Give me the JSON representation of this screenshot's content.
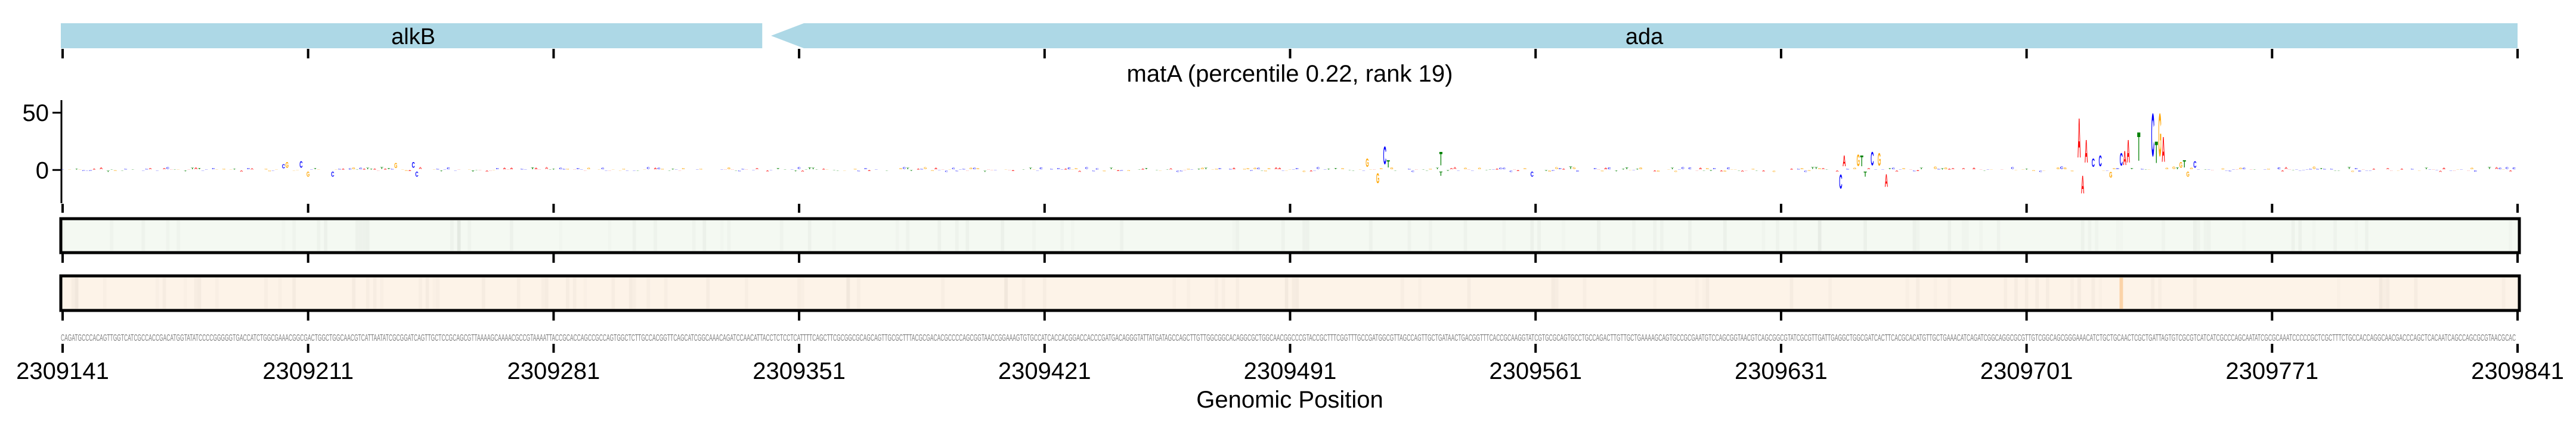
{
  "chart_data": {
    "type": "sequence-logo",
    "title": "matA (percentile 0.22, rank 19)",
    "xlabel": "Genomic Position",
    "xlim": [
      2309141,
      2309841
    ],
    "xticks": [
      2309141,
      2309211,
      2309281,
      2309351,
      2309421,
      2309491,
      2309561,
      2309631,
      2309701,
      2309771,
      2309841
    ],
    "ylim": [
      -29,
      61
    ],
    "yticks": [
      0,
      50
    ],
    "genes": [
      {
        "name": "alkB",
        "start": 2309141,
        "end": 2309341,
        "strand": "+"
      },
      {
        "name": "ada",
        "start": 2309343,
        "end": 2309841,
        "strand": "-"
      }
    ],
    "base_colors": {
      "A": "#ff0000",
      "C": "#0000ff",
      "G": "#ffa500",
      "T": "#008000"
    },
    "background_amplitude": 3,
    "peaks": [
      {
        "pos": 2309204,
        "base": "C",
        "value": 6
      },
      {
        "pos": 2309205,
        "base": "G",
        "value": 8
      },
      {
        "pos": 2309209,
        "base": "C",
        "value": 9
      },
      {
        "pos": 2309211,
        "base": "G",
        "value": -7
      },
      {
        "pos": 2309218,
        "base": "C",
        "value": -7
      },
      {
        "pos": 2309236,
        "base": "G",
        "value": 7
      },
      {
        "pos": 2309241,
        "base": "C",
        "value": 8
      },
      {
        "pos": 2309242,
        "base": "C",
        "value": -7
      },
      {
        "pos": 2309513,
        "base": "G",
        "value": 12
      },
      {
        "pos": 2309516,
        "base": "G",
        "value": -14
      },
      {
        "pos": 2309518,
        "base": "C",
        "value": 25
      },
      {
        "pos": 2309519,
        "base": "T",
        "value": 10
      },
      {
        "pos": 2309534,
        "base": "T",
        "value": 19
      },
      {
        "pos": 2309534,
        "base": "T",
        "value": -6
      },
      {
        "pos": 2309560,
        "base": "C",
        "value": -7
      },
      {
        "pos": 2309648,
        "base": "C",
        "value": -20
      },
      {
        "pos": 2309649,
        "base": "A",
        "value": 15
      },
      {
        "pos": 2309653,
        "base": "G",
        "value": 16
      },
      {
        "pos": 2309654,
        "base": "T",
        "value": 15
      },
      {
        "pos": 2309655,
        "base": "T",
        "value": -7
      },
      {
        "pos": 2309657,
        "base": "C",
        "value": 19
      },
      {
        "pos": 2309659,
        "base": "G",
        "value": 18
      },
      {
        "pos": 2309661,
        "base": "A",
        "value": -18
      },
      {
        "pos": 2309716,
        "base": "A",
        "value": 55
      },
      {
        "pos": 2309717,
        "base": "A",
        "value": -25
      },
      {
        "pos": 2309718,
        "base": "A",
        "value": 32
      },
      {
        "pos": 2309720,
        "base": "C",
        "value": 12
      },
      {
        "pos": 2309722,
        "base": "C",
        "value": 15
      },
      {
        "pos": 2309725,
        "base": "G",
        "value": -8
      },
      {
        "pos": 2309728,
        "base": "C",
        "value": 18
      },
      {
        "pos": 2309729,
        "base": "A",
        "value": 20
      },
      {
        "pos": 2309730,
        "base": "A",
        "value": 32
      },
      {
        "pos": 2309733,
        "base": "T",
        "value": 40
      },
      {
        "pos": 2309737,
        "base": "C",
        "value": 60
      },
      {
        "pos": 2309738,
        "base": "T",
        "value": 30
      },
      {
        "pos": 2309739,
        "base": "G",
        "value": 60
      },
      {
        "pos": 2309740,
        "base": "A",
        "value": 35
      },
      {
        "pos": 2309745,
        "base": "G",
        "value": 8
      },
      {
        "pos": 2309746,
        "base": "T",
        "value": 10
      },
      {
        "pos": 2309747,
        "base": "G",
        "value": -7
      },
      {
        "pos": 2309749,
        "base": "C",
        "value": 9
      }
    ],
    "track1": {
      "color": "#f4f9f2",
      "highlight_positions": []
    },
    "track2": {
      "color": "#fdf3e8",
      "highlight_color": "#fbd3a8",
      "highlight_positions": [
        2309728
      ]
    },
    "sequence": "CAGATGCCCACAGTTGGTCATCGCCACCGACATGGTATATCCCCGGGGGTGACCATCTGGCGAAACGGCGACTGGCTGGCAACGTCATTAATATCGCGGATCAGTTGCTCCGCAGCGTTAAAAGCAAAACGCCGTAAAATTACCGCACCAGCCGCCAGTGGCTCTTGCCACGGTTCAGCATCGGCAAACAGATCCAACATTACCTCTCCTCATTTTCAGCTTCGCGGCGCAGCAGTTGCGCTTTACGCGACACGCCCCAGCGGTAACCGGAAAGTGTGCCATCACCACGGACCACCCGATGACAGGGTATTATGATAGCCAGCTTGTTGGCGGCACAGGCGCTGGCAACGGCCCGTACCGCTTTCGGTTTGCCGATGGCGTTAGCCAGTTGCTGATAACTGACGGTTTCACCGCAAGGTATCGTGCGCAGTGCCTGCCAGACTTGTTGCTGAAAAGCAGTGCCGCGAATGTCCAGCGGTAACGTCAGCGGCGTATCGCGTTGATTGAGGCTGGCGATCACTTCACGCACATGTTGCTGAAACATCAGATCGGCAGGCGCGTTGTCGGCAGCGGGAAACATCTGCTGCAACTCGCTGATTAGTGTCGCGTCATCATCGCCCAGCAATATCGCGCAAATCCCCCGCTCGCTTTCTGCCACCAGGCAACGACCCAGCTCACAATCAGCCAGCGCGTAACGCAC"
  }
}
